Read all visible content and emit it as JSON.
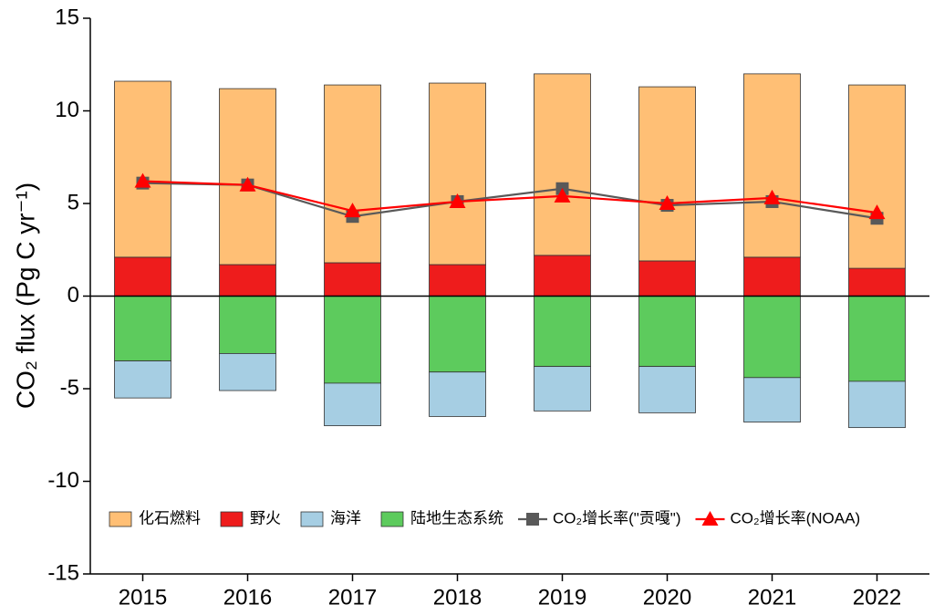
{
  "chart_data": {
    "type": "bar",
    "y_label": "CO₂ flux (Pg C yr⁻¹)",
    "categories": [
      "2015",
      "2016",
      "2017",
      "2018",
      "2019",
      "2020",
      "2021",
      "2022"
    ],
    "series": [
      {
        "name": "化石燃料",
        "color": "#ffbf75",
        "values": [
          9.5,
          9.5,
          9.6,
          9.8,
          9.8,
          9.4,
          9.9,
          9.9
        ]
      },
      {
        "name": "野火",
        "color": "#ee1c1c",
        "values": [
          2.1,
          1.7,
          1.8,
          1.7,
          2.2,
          1.9,
          2.1,
          1.5
        ]
      },
      {
        "name": "海洋",
        "color": "#a6cee3",
        "values": [
          -2.0,
          -2.0,
          -2.3,
          -2.4,
          -2.4,
          -2.5,
          -2.4,
          -2.5
        ]
      },
      {
        "name": "陆地生态系统",
        "color": "#5dcb5d",
        "values": [
          -3.5,
          -3.1,
          -4.7,
          -4.1,
          -3.8,
          -3.8,
          -4.4,
          -4.6
        ]
      },
      {
        "name": "CO₂增长率(\"贡嘎\")",
        "type": "line",
        "marker": "square",
        "color": "#595959",
        "values": [
          6.1,
          6.0,
          4.3,
          5.1,
          5.8,
          4.9,
          5.1,
          4.2
        ]
      },
      {
        "name": "CO₂增长率(NOAA)",
        "type": "line",
        "marker": "triangle",
        "color": "#ff0000",
        "values": [
          6.2,
          6.0,
          4.6,
          5.1,
          5.4,
          5.0,
          5.3,
          4.5
        ]
      }
    ],
    "ylim": [
      -15,
      15
    ],
    "yticks": [
      -15,
      -10,
      -5,
      0,
      5,
      10,
      15
    ],
    "zero_line": true
  }
}
